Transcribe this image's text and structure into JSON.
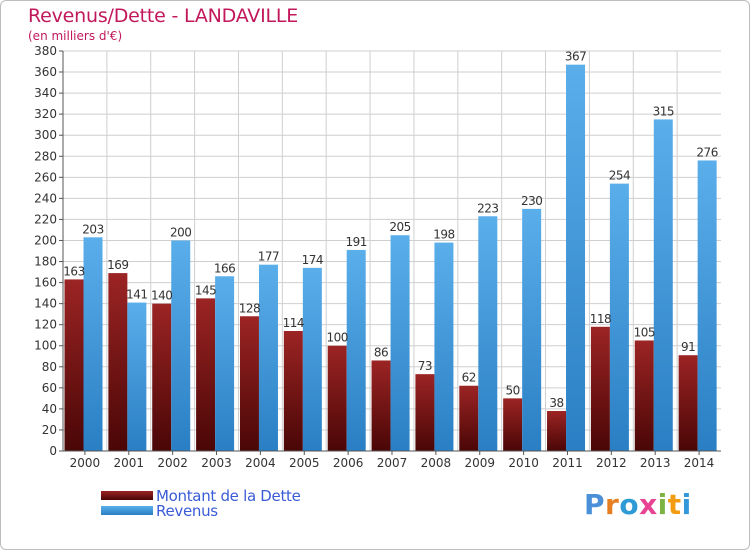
{
  "header": {
    "title": "Revenus/Dette - LANDAVILLE",
    "subtitle": "(en milliers d'€)"
  },
  "colors": {
    "dette": "#8b1a1a",
    "revenus": "#4aa3e6",
    "grid": "#cfcfcf",
    "title": "#c2185b",
    "legend_text": "#3a5bd6"
  },
  "legend": {
    "items": [
      {
        "label": "Montant de la Dette",
        "color": "#8b1a1a"
      },
      {
        "label": "Revenus",
        "color": "#4aa3e6"
      }
    ]
  },
  "logo": {
    "text": "Proxiti",
    "icon": "proxiti-logo"
  },
  "chart_data": {
    "type": "bar",
    "title": "Revenus/Dette - LANDAVILLE",
    "subtitle": "(en milliers d'€)",
    "categories": [
      "2000",
      "2001",
      "2002",
      "2003",
      "2004",
      "2005",
      "2006",
      "2007",
      "2008",
      "2009",
      "2010",
      "2011",
      "2012",
      "2013",
      "2014"
    ],
    "series": [
      {
        "name": "Montant de la Dette",
        "values": [
          163,
          169,
          140,
          145,
          128,
          114,
          100,
          86,
          73,
          62,
          50,
          38,
          118,
          105,
          91
        ]
      },
      {
        "name": "Revenus",
        "values": [
          203,
          141,
          200,
          166,
          177,
          174,
          191,
          205,
          198,
          223,
          230,
          367,
          254,
          315,
          276
        ]
      }
    ],
    "ylim": [
      0,
      380
    ],
    "yticks": [
      0,
      20,
      40,
      60,
      80,
      100,
      120,
      140,
      160,
      180,
      200,
      220,
      240,
      260,
      280,
      300,
      320,
      340,
      360,
      380
    ],
    "grid": true,
    "legend_position": "bottom-left"
  }
}
